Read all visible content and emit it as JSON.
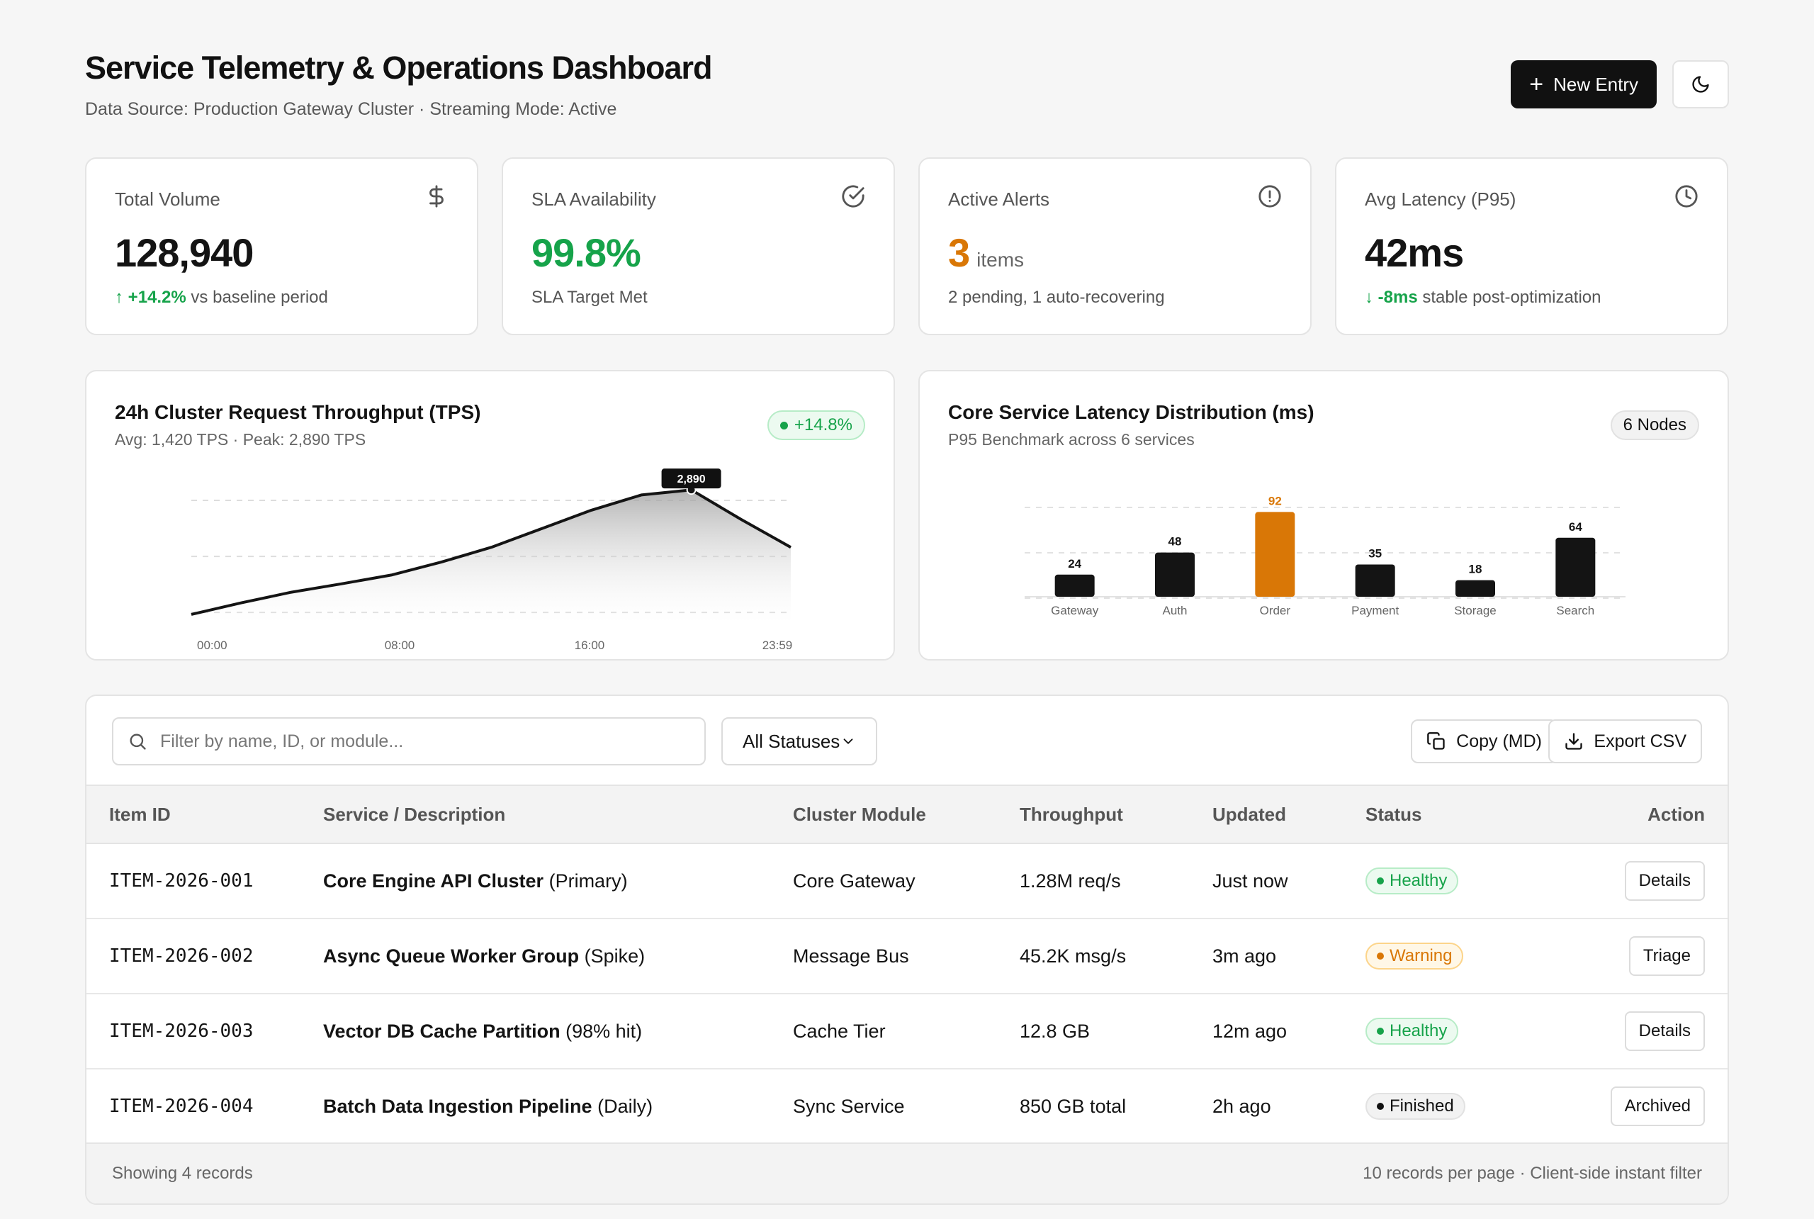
{
  "header": {
    "title": "Service Telemetry & Operations Dashboard",
    "subtitle": "Data Source: Production Gateway Cluster · Streaming Mode: Active",
    "new_entry_label": "New Entry",
    "theme_icon": "moon-icon"
  },
  "stats": [
    {
      "label": "Total Volume",
      "icon": "dollar-icon",
      "value": "128,940",
      "delta": "+14.2%",
      "sub": "vs baseline period"
    },
    {
      "label": "SLA Availability",
      "icon": "check-circle-icon",
      "value": "99.8%",
      "sub": "SLA Target Met"
    },
    {
      "label": "Active Alerts",
      "icon": "alert-circle-icon",
      "value": "3",
      "unit": "items",
      "sub": "2 pending, 1 auto-recovering"
    },
    {
      "label": "Avg Latency (P95)",
      "icon": "clock-icon",
      "value": "42ms",
      "delta": "-8ms",
      "sub": "stable post-optimization"
    }
  ],
  "throughput_chart": {
    "title": "24h Cluster Request Throughput (TPS)",
    "subtitle": "Avg: 1,420 TPS · Peak: 2,890 TPS",
    "badge": "+14.8%"
  },
  "latency_chart": {
    "title": "Core Service Latency Distribution (ms)",
    "subtitle": "P95 Benchmark across 6 services",
    "badge": "6 Nodes"
  },
  "chart_data": [
    {
      "type": "area",
      "x_ticks": [
        "00:00",
        "08:00",
        "16:00",
        "23:59"
      ],
      "x": [
        0,
        2,
        4,
        6,
        8,
        10,
        12,
        14,
        16,
        18,
        20,
        22,
        23.98
      ],
      "y": [
        200,
        450,
        680,
        860,
        1050,
        1330,
        1650,
        2050,
        2450,
        2780,
        2890,
        2250,
        1650
      ],
      "ylim": [
        0,
        3000
      ],
      "peak_label": "2,890",
      "grid": true
    },
    {
      "type": "bar",
      "categories": [
        "Gateway",
        "Auth",
        "Order",
        "Payment",
        "Storage",
        "Search"
      ],
      "values": [
        24,
        48,
        92,
        35,
        18,
        64
      ],
      "highlight": "Order",
      "ylim": [
        0,
        100
      ],
      "grid": true,
      "colors": {
        "default": "#141414",
        "highlight": "#d97706"
      }
    }
  ],
  "table": {
    "search_placeholder": "Filter by name, ID, or module...",
    "status_filter": "All Statuses",
    "copy_label": "Copy (MD)",
    "export_label": "Export CSV",
    "columns": [
      "Item ID",
      "Service / Description",
      "Cluster Module",
      "Throughput",
      "Updated",
      "Status",
      "Action"
    ],
    "rows": [
      {
        "id": "ITEM-2026-001",
        "name": "Core Engine API Cluster",
        "note": "(Primary)",
        "module": "Core Gateway",
        "throughput": "1.28M req/s",
        "updated": "Just now",
        "status": "Healthy",
        "action": "Details"
      },
      {
        "id": "ITEM-2026-002",
        "name": "Async Queue Worker Group",
        "note": "(Spike)",
        "module": "Message Bus",
        "throughput": "45.2K msg/s",
        "updated": "3m ago",
        "status": "Warning",
        "action": "Triage"
      },
      {
        "id": "ITEM-2026-003",
        "name": "Vector DB Cache Partition",
        "note": "(98% hit)",
        "module": "Cache Tier",
        "throughput": "12.8 GB",
        "updated": "12m ago",
        "status": "Healthy",
        "action": "Details"
      },
      {
        "id": "ITEM-2026-004",
        "name": "Batch Data Ingestion Pipeline",
        "note": "(Daily)",
        "module": "Sync Service",
        "throughput": "850 GB total",
        "updated": "2h ago",
        "status": "Finished",
        "action": "Archived"
      }
    ],
    "footer_left": "Showing 4 records",
    "footer_right": "10 records per page · Client-side instant filter"
  }
}
